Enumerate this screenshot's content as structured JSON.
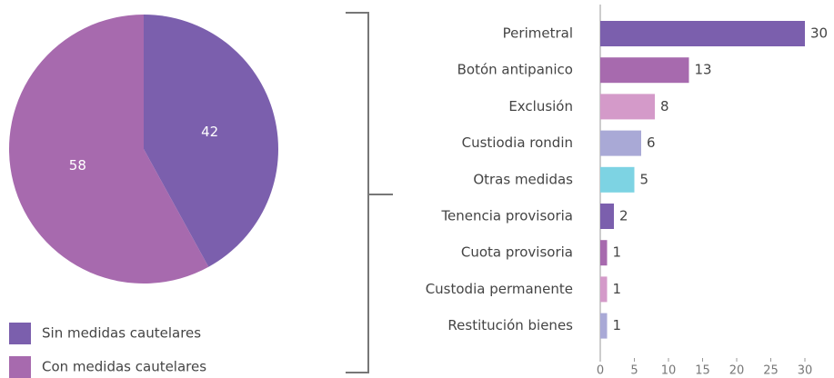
{
  "chart_data": [
    {
      "type": "pie",
      "categories": [
        "Sin medidas cautelares",
        "Con medidas cautelares"
      ],
      "values": [
        42,
        58
      ],
      "colors": [
        "#7b5fad",
        "#a76aae"
      ]
    },
    {
      "type": "bar",
      "orientation": "horizontal",
      "categories": [
        "Perimetral",
        "Botón antipanico",
        "Exclusión",
        "Custiodia rondin",
        "Otras medidas",
        "Tenencia provisoria",
        "Cuota provisoria",
        "Custodia permanente",
        "Restitución bienes"
      ],
      "values": [
        30,
        13,
        8,
        6,
        5,
        2,
        1,
        1,
        1
      ],
      "colors": [
        "#7b5fad",
        "#a76aae",
        "#d49ac9",
        "#a9a9d6",
        "#7dd3e3",
        "#7b5fad",
        "#a76aae",
        "#d49ac9",
        "#a9a9d6"
      ],
      "xlim": [
        0,
        30
      ],
      "xticks": [
        0,
        5,
        10,
        15,
        20,
        25,
        30
      ]
    }
  ]
}
